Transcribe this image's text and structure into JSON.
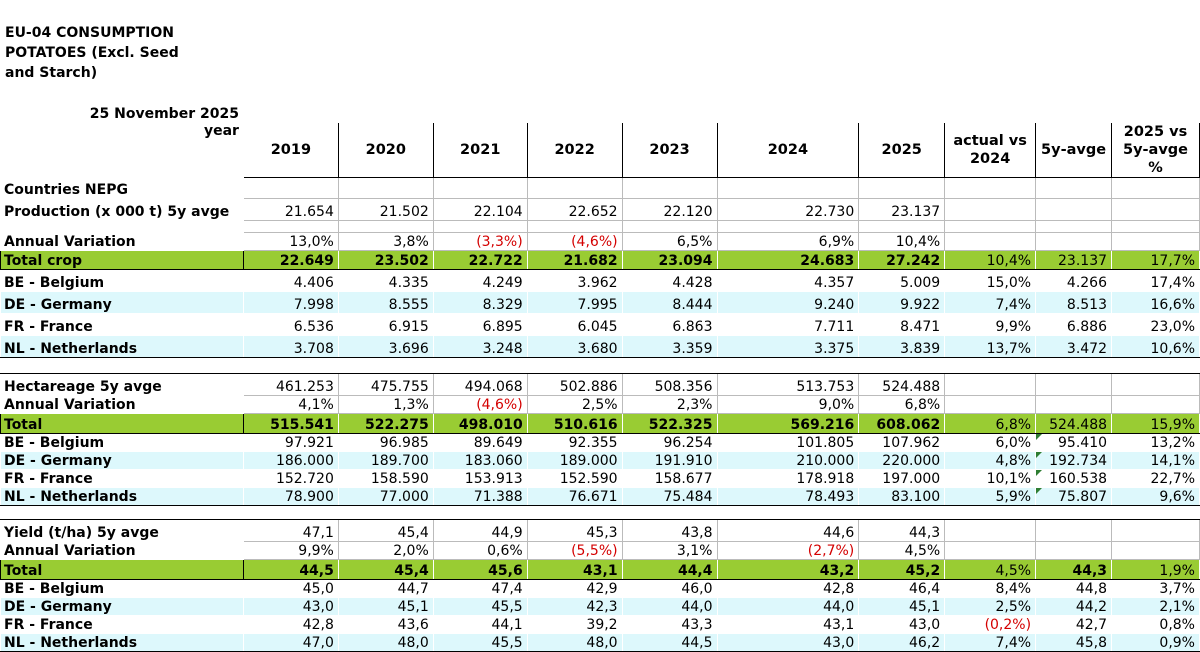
{
  "title": "EU-04 CONSUMPTION POTATOES (Excl. Seed and Starch)",
  "date": "25 November 2025",
  "year_label": "year",
  "headers": [
    "2019",
    "2020",
    "2021",
    "2022",
    "2023",
    "2024",
    "2025",
    "actual vs 2024",
    "5y-avge",
    "2025 vs 5y-avge %"
  ],
  "countries_label": "Countries NEPG",
  "sections": [
    {
      "avg_row": {
        "label": "Production (x 000 t) 5y avge",
        "values": [
          "21.654",
          "21.502",
          "22.104",
          "22.652",
          "22.120",
          "22.730",
          "23.137"
        ]
      },
      "variation_row": {
        "label": "Annual Variation",
        "values": [
          "13,0%",
          "3,8%",
          "(3,3%)",
          "(4,6%)",
          "6,5%",
          "6,9%",
          "10,4%"
        ]
      },
      "total_row": {
        "label": "Total crop",
        "values": [
          "22.649",
          "23.502",
          "22.722",
          "21.682",
          "23.094",
          "24.683",
          "27.242",
          "10,4%",
          "23.137",
          "17,7%"
        ]
      },
      "country_rows": [
        {
          "label": "BE - Belgium",
          "values": [
            "4.406",
            "4.335",
            "4.249",
            "3.962",
            "4.428",
            "4.357",
            "5.009",
            "15,0%",
            "4.266",
            "17,4%"
          ]
        },
        {
          "label": "DE - Germany",
          "values": [
            "7.998",
            "8.555",
            "8.329",
            "7.995",
            "8.444",
            "9.240",
            "9.922",
            "7,4%",
            "8.513",
            "16,6%"
          ]
        },
        {
          "label": "FR - France",
          "values": [
            "6.536",
            "6.915",
            "6.895",
            "6.045",
            "6.863",
            "7.711",
            "8.471",
            "9,9%",
            "6.886",
            "23,0%"
          ]
        },
        {
          "label": "NL - Netherlands",
          "values": [
            "3.708",
            "3.696",
            "3.248",
            "3.680",
            "3.359",
            "3.375",
            "3.839",
            "13,7%",
            "3.472",
            "10,6%"
          ]
        }
      ]
    },
    {
      "avg_row": {
        "label": "Hectareage 5y avge",
        "values": [
          "461.253",
          "475.755",
          "494.068",
          "502.886",
          "508.356",
          "513.753",
          "524.488"
        ]
      },
      "variation_row": {
        "label": "Annual Variation",
        "values": [
          "4,1%",
          "1,3%",
          "(4,6%)",
          "2,5%",
          "2,3%",
          "9,0%",
          "6,8%"
        ]
      },
      "total_row": {
        "label": "Total",
        "values": [
          "515.541",
          "522.275",
          "498.010",
          "510.616",
          "522.325",
          "569.216",
          "608.062",
          "6,8%",
          "524.488",
          "15,9%"
        ]
      },
      "country_rows": [
        {
          "label": "BE - Belgium",
          "values": [
            "97.921",
            "96.985",
            "89.649",
            "92.355",
            "96.254",
            "101.805",
            "107.962",
            "6,0%",
            "95.410",
            "13,2%"
          ]
        },
        {
          "label": "DE - Germany",
          "values": [
            "186.000",
            "189.700",
            "183.060",
            "189.000",
            "191.910",
            "210.000",
            "220.000",
            "4,8%",
            "192.734",
            "14,1%"
          ]
        },
        {
          "label": "FR - France",
          "values": [
            "152.720",
            "158.590",
            "153.913",
            "152.590",
            "158.677",
            "178.918",
            "197.000",
            "10,1%",
            "160.538",
            "22,7%"
          ]
        },
        {
          "label": "NL - Netherlands",
          "values": [
            "78.900",
            "77.000",
            "71.388",
            "76.671",
            "75.484",
            "78.493",
            "83.100",
            "5,9%",
            "75.807",
            "9,6%"
          ]
        }
      ]
    },
    {
      "avg_row": {
        "label": "Yield (t/ha) 5y avge",
        "values": [
          "47,1",
          "45,4",
          "44,9",
          "45,3",
          "43,8",
          "44,6",
          "44,3"
        ]
      },
      "variation_row": {
        "label": "Annual Variation",
        "values": [
          "9,9%",
          "2,0%",
          "0,6%",
          "(5,5%)",
          "3,1%",
          "(2,7%)",
          "4,5%"
        ]
      },
      "total_row": {
        "label": "Total",
        "values": [
          "44,5",
          "45,4",
          "45,6",
          "43,1",
          "44,4",
          "43,2",
          "45,2",
          "4,5%",
          "44,3",
          "1,9%"
        ]
      },
      "country_rows": [
        {
          "label": "BE - Belgium",
          "values": [
            "45,0",
            "44,7",
            "47,4",
            "42,9",
            "46,0",
            "42,8",
            "46,4",
            "8,4%",
            "44,8",
            "3,7%"
          ]
        },
        {
          "label": "DE - Germany",
          "values": [
            "43,0",
            "45,1",
            "45,5",
            "42,3",
            "44,0",
            "44,0",
            "45,1",
            "2,5%",
            "44,2",
            "2,1%"
          ]
        },
        {
          "label": "FR - France",
          "values": [
            "42,8",
            "43,6",
            "44,1",
            "39,2",
            "43,3",
            "43,1",
            "43,0",
            "(0,2%)",
            "42,7",
            "0,8%"
          ]
        },
        {
          "label": "NL - Netherlands",
          "values": [
            "47,0",
            "48,0",
            "45,5",
            "48,0",
            "44,5",
            "43,0",
            "46,2",
            "7,4%",
            "45,8",
            "0,9%"
          ]
        }
      ]
    }
  ],
  "colors": {
    "total_row": "#99cc33",
    "alt_row": "#ddf8fc",
    "negative": "#d40000"
  }
}
